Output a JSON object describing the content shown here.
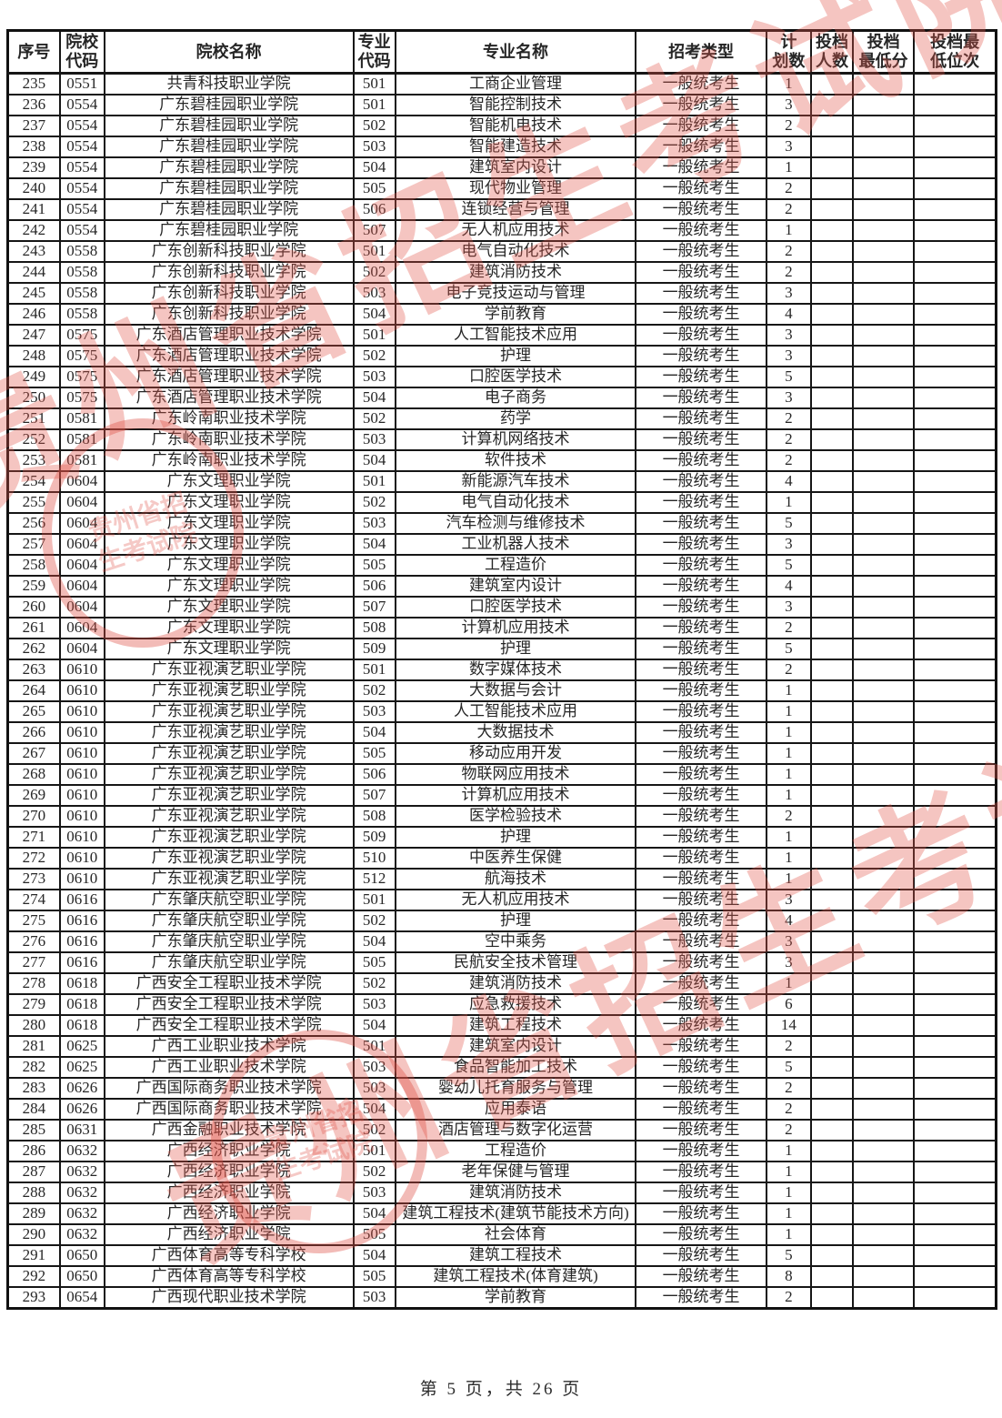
{
  "table": {
    "headers": [
      "序号",
      "院校\n代码",
      "院校名称",
      "专业\n代码",
      "专业名称",
      "招考类型",
      "计\n划数",
      "投档\n人数",
      "投档\n最低分",
      "投档最\n低位次"
    ],
    "rows": [
      [
        "235",
        "0551",
        "共青科技职业学院",
        "501",
        "工商企业管理",
        "一般统考生",
        "1",
        "",
        "",
        ""
      ],
      [
        "236",
        "0554",
        "广东碧桂园职业学院",
        "501",
        "智能控制技术",
        "一般统考生",
        "3",
        "",
        "",
        ""
      ],
      [
        "237",
        "0554",
        "广东碧桂园职业学院",
        "502",
        "智能机电技术",
        "一般统考生",
        "2",
        "",
        "",
        ""
      ],
      [
        "238",
        "0554",
        "广东碧桂园职业学院",
        "503",
        "智能建造技术",
        "一般统考生",
        "3",
        "",
        "",
        ""
      ],
      [
        "239",
        "0554",
        "广东碧桂园职业学院",
        "504",
        "建筑室内设计",
        "一般统考生",
        "1",
        "",
        "",
        ""
      ],
      [
        "240",
        "0554",
        "广东碧桂园职业学院",
        "505",
        "现代物业管理",
        "一般统考生",
        "2",
        "",
        "",
        ""
      ],
      [
        "241",
        "0554",
        "广东碧桂园职业学院",
        "506",
        "连锁经营与管理",
        "一般统考生",
        "2",
        "",
        "",
        ""
      ],
      [
        "242",
        "0554",
        "广东碧桂园职业学院",
        "507",
        "无人机应用技术",
        "一般统考生",
        "1",
        "",
        "",
        ""
      ],
      [
        "243",
        "0558",
        "广东创新科技职业学院",
        "501",
        "电气自动化技术",
        "一般统考生",
        "2",
        "",
        "",
        ""
      ],
      [
        "244",
        "0558",
        "广东创新科技职业学院",
        "502",
        "建筑消防技术",
        "一般统考生",
        "2",
        "",
        "",
        ""
      ],
      [
        "245",
        "0558",
        "广东创新科技职业学院",
        "503",
        "电子竞技运动与管理",
        "一般统考生",
        "3",
        "",
        "",
        ""
      ],
      [
        "246",
        "0558",
        "广东创新科技职业学院",
        "504",
        "学前教育",
        "一般统考生",
        "4",
        "",
        "",
        ""
      ],
      [
        "247",
        "0575",
        "广东酒店管理职业技术学院",
        "501",
        "人工智能技术应用",
        "一般统考生",
        "3",
        "",
        "",
        ""
      ],
      [
        "248",
        "0575",
        "广东酒店管理职业技术学院",
        "502",
        "护理",
        "一般统考生",
        "3",
        "",
        "",
        ""
      ],
      [
        "249",
        "0575",
        "广东酒店管理职业技术学院",
        "503",
        "口腔医学技术",
        "一般统考生",
        "5",
        "",
        "",
        ""
      ],
      [
        "250",
        "0575",
        "广东酒店管理职业技术学院",
        "504",
        "电子商务",
        "一般统考生",
        "3",
        "",
        "",
        ""
      ],
      [
        "251",
        "0581",
        "广东岭南职业技术学院",
        "502",
        "药学",
        "一般统考生",
        "2",
        "",
        "",
        ""
      ],
      [
        "252",
        "0581",
        "广东岭南职业技术学院",
        "503",
        "计算机网络技术",
        "一般统考生",
        "2",
        "",
        "",
        ""
      ],
      [
        "253",
        "0581",
        "广东岭南职业技术学院",
        "504",
        "软件技术",
        "一般统考生",
        "2",
        "",
        "",
        ""
      ],
      [
        "254",
        "0604",
        "广东文理职业学院",
        "501",
        "新能源汽车技术",
        "一般统考生",
        "4",
        "",
        "",
        ""
      ],
      [
        "255",
        "0604",
        "广东文理职业学院",
        "502",
        "电气自动化技术",
        "一般统考生",
        "1",
        "",
        "",
        ""
      ],
      [
        "256",
        "0604",
        "广东文理职业学院",
        "503",
        "汽车检测与维修技术",
        "一般统考生",
        "5",
        "",
        "",
        ""
      ],
      [
        "257",
        "0604",
        "广东文理职业学院",
        "504",
        "工业机器人技术",
        "一般统考生",
        "3",
        "",
        "",
        ""
      ],
      [
        "258",
        "0604",
        "广东文理职业学院",
        "505",
        "工程造价",
        "一般统考生",
        "5",
        "",
        "",
        ""
      ],
      [
        "259",
        "0604",
        "广东文理职业学院",
        "506",
        "建筑室内设计",
        "一般统考生",
        "4",
        "",
        "",
        ""
      ],
      [
        "260",
        "0604",
        "广东文理职业学院",
        "507",
        "口腔医学技术",
        "一般统考生",
        "3",
        "",
        "",
        ""
      ],
      [
        "261",
        "0604",
        "广东文理职业学院",
        "508",
        "计算机应用技术",
        "一般统考生",
        "2",
        "",
        "",
        ""
      ],
      [
        "262",
        "0604",
        "广东文理职业学院",
        "509",
        "护理",
        "一般统考生",
        "5",
        "",
        "",
        ""
      ],
      [
        "263",
        "0610",
        "广东亚视演艺职业学院",
        "501",
        "数字媒体技术",
        "一般统考生",
        "2",
        "",
        "",
        ""
      ],
      [
        "264",
        "0610",
        "广东亚视演艺职业学院",
        "502",
        "大数据与会计",
        "一般统考生",
        "1",
        "",
        "",
        ""
      ],
      [
        "265",
        "0610",
        "广东亚视演艺职业学院",
        "503",
        "人工智能技术应用",
        "一般统考生",
        "1",
        "",
        "",
        ""
      ],
      [
        "266",
        "0610",
        "广东亚视演艺职业学院",
        "504",
        "大数据技术",
        "一般统考生",
        "1",
        "",
        "",
        ""
      ],
      [
        "267",
        "0610",
        "广东亚视演艺职业学院",
        "505",
        "移动应用开发",
        "一般统考生",
        "1",
        "",
        "",
        ""
      ],
      [
        "268",
        "0610",
        "广东亚视演艺职业学院",
        "506",
        "物联网应用技术",
        "一般统考生",
        "1",
        "",
        "",
        ""
      ],
      [
        "269",
        "0610",
        "广东亚视演艺职业学院",
        "507",
        "计算机应用技术",
        "一般统考生",
        "1",
        "",
        "",
        ""
      ],
      [
        "270",
        "0610",
        "广东亚视演艺职业学院",
        "508",
        "医学检验技术",
        "一般统考生",
        "2",
        "",
        "",
        ""
      ],
      [
        "271",
        "0610",
        "广东亚视演艺职业学院",
        "509",
        "护理",
        "一般统考生",
        "1",
        "",
        "",
        ""
      ],
      [
        "272",
        "0610",
        "广东亚视演艺职业学院",
        "510",
        "中医养生保健",
        "一般统考生",
        "1",
        "",
        "",
        ""
      ],
      [
        "273",
        "0610",
        "广东亚视演艺职业学院",
        "512",
        "航海技术",
        "一般统考生",
        "1",
        "",
        "",
        ""
      ],
      [
        "274",
        "0616",
        "广东肇庆航空职业学院",
        "501",
        "无人机应用技术",
        "一般统考生",
        "3",
        "",
        "",
        ""
      ],
      [
        "275",
        "0616",
        "广东肇庆航空职业学院",
        "502",
        "护理",
        "一般统考生",
        "4",
        "",
        "",
        ""
      ],
      [
        "276",
        "0616",
        "广东肇庆航空职业学院",
        "504",
        "空中乘务",
        "一般统考生",
        "3",
        "",
        "",
        ""
      ],
      [
        "277",
        "0616",
        "广东肇庆航空职业学院",
        "505",
        "民航安全技术管理",
        "一般统考生",
        "3",
        "",
        "",
        ""
      ],
      [
        "278",
        "0618",
        "广西安全工程职业技术学院",
        "502",
        "建筑消防技术",
        "一般统考生",
        "1",
        "",
        "",
        ""
      ],
      [
        "279",
        "0618",
        "广西安全工程职业技术学院",
        "503",
        "应急救援技术",
        "一般统考生",
        "6",
        "",
        "",
        ""
      ],
      [
        "280",
        "0618",
        "广西安全工程职业技术学院",
        "504",
        "建筑工程技术",
        "一般统考生",
        "14",
        "",
        "",
        ""
      ],
      [
        "281",
        "0625",
        "广西工业职业技术学院",
        "501",
        "建筑室内设计",
        "一般统考生",
        "2",
        "",
        "",
        ""
      ],
      [
        "282",
        "0625",
        "广西工业职业技术学院",
        "503",
        "食品智能加工技术",
        "一般统考生",
        "5",
        "",
        "",
        ""
      ],
      [
        "283",
        "0626",
        "广西国际商务职业技术学院",
        "503",
        "婴幼儿托育服务与管理",
        "一般统考生",
        "2",
        "",
        "",
        ""
      ],
      [
        "284",
        "0626",
        "广西国际商务职业技术学院",
        "504",
        "应用泰语",
        "一般统考生",
        "2",
        "",
        "",
        ""
      ],
      [
        "285",
        "0631",
        "广西金融职业技术学院",
        "502",
        "酒店管理与数字化运营",
        "一般统考生",
        "2",
        "",
        "",
        ""
      ],
      [
        "286",
        "0632",
        "广西经济职业学院",
        "501",
        "工程造价",
        "一般统考生",
        "1",
        "",
        "",
        ""
      ],
      [
        "287",
        "0632",
        "广西经济职业学院",
        "502",
        "老年保健与管理",
        "一般统考生",
        "1",
        "",
        "",
        ""
      ],
      [
        "288",
        "0632",
        "广西经济职业学院",
        "503",
        "建筑消防技术",
        "一般统考生",
        "1",
        "",
        "",
        ""
      ],
      [
        "289",
        "0632",
        "广西经济职业学院",
        "504",
        "建筑工程技术(建筑节能技术方向)",
        "一般统考生",
        "1",
        "",
        "",
        ""
      ],
      [
        "290",
        "0632",
        "广西经济职业学院",
        "505",
        "社会体育",
        "一般统考生",
        "1",
        "",
        "",
        ""
      ],
      [
        "291",
        "0650",
        "广西体育高等专科学校",
        "504",
        "建筑工程技术",
        "一般统考生",
        "5",
        "",
        "",
        ""
      ],
      [
        "292",
        "0650",
        "广西体育高等专科学校",
        "505",
        "建筑工程技术(体育建筑)",
        "一般统考生",
        "8",
        "",
        "",
        ""
      ],
      [
        "293",
        "0654",
        "广西现代职业技术学院",
        "503",
        "学前教育",
        "一般统考生",
        "2",
        "",
        "",
        ""
      ]
    ]
  },
  "footer": {
    "page_label": "第 5 页，共 26 页"
  },
  "watermark": {
    "text": "贵州省招生考试院",
    "color": "#e2544a"
  }
}
